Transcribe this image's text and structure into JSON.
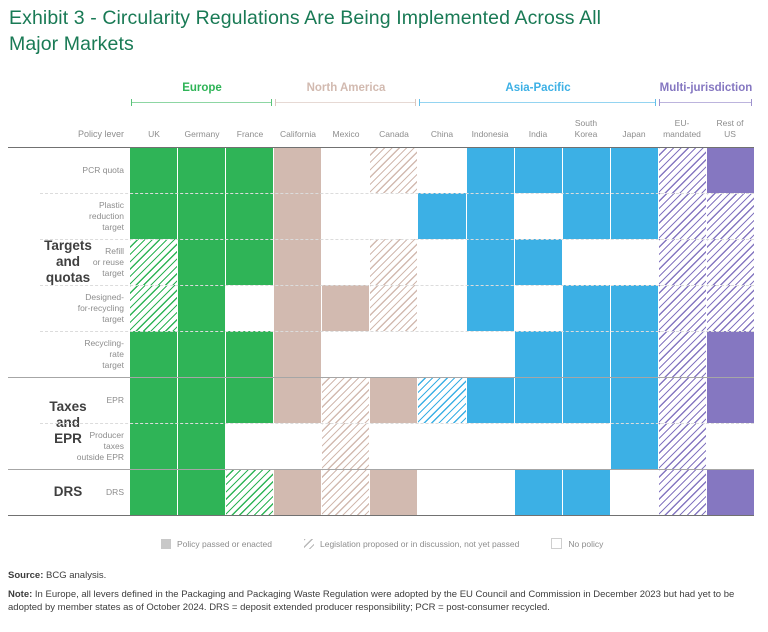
{
  "title": "Exhibit 3 - Circularity Regulations Are Being Implemented Across All\nMajor Markets",
  "header": {
    "policy_lever_label": "Policy lever"
  },
  "colors": {
    "title_green": "#197a55",
    "label_gray": "#8d8d8d",
    "group_dark": "#3f3f3f",
    "legend_gray": "#c8c8c8",
    "europe_green": "#2fb457",
    "north_america_tan": "#d2bab0",
    "asia_pacific_blue": "#3cb0e5",
    "multi_jurisdiction_purple": "#8577c1"
  },
  "regions": [
    {
      "name": "Europe",
      "color": "#2fb457",
      "cols": 3
    },
    {
      "name": "North America",
      "color": "#d2bab0",
      "cols": 3
    },
    {
      "name": "Asia-Pacific",
      "color": "#3cb0e5",
      "cols": 5
    },
    {
      "name": "Multi-jurisdiction",
      "color": "#8577c1",
      "cols": 2
    }
  ],
  "column_display": [
    "UK",
    "Germany",
    "France",
    "California",
    "Mexico",
    "Canada",
    "China",
    "Indonesia",
    "India",
    "South\nKorea",
    "Japan",
    "EU-\nmandated",
    "Rest of\nUS"
  ],
  "row_display": [
    "PCR quota",
    "Plastic\nreduction\ntarget",
    "Refill\nor reuse\ntarget",
    "Designed-\nfor-recycling\ntarget",
    "Recycling-\nrate\ntarget",
    "EPR",
    "Producer\ntaxes\noutside EPR",
    "DRS"
  ],
  "row_groups": [
    {
      "label": "Targets\nand\nquotas",
      "plain_label": "Targets and quotas",
      "first_row": 0,
      "row_count": 5
    },
    {
      "label": "Taxes\nand\nEPR",
      "plain_label": "Taxes and EPR",
      "first_row": 5,
      "row_count": 2
    },
    {
      "label": "DRS",
      "plain_label": "DRS",
      "first_row": 7,
      "row_count": 1
    }
  ],
  "legend": {
    "items": [
      {
        "label": "Policy passed or enacted",
        "swatch": "passed"
      },
      {
        "label": "Legislation proposed or in discussion, not yet passed",
        "swatch": "proposed"
      },
      {
        "label": "No policy",
        "swatch": "none"
      }
    ]
  },
  "footer": {
    "source_label": "Source:",
    "source_text": "BCG analysis.",
    "note_label": "Note:",
    "note_text": "In Europe, all levers defined in the Packaging and Packaging Waste Regulation were adopted by the EU Council and Commission in December 2023 but had yet to be adopted by member states as of October 2024. DRS = deposit extended producer responsibility; PCR = post-consumer recycled."
  },
  "chart_data": {
    "type": "heatmap",
    "title": "Exhibit 3 - Circularity Regulations Are Being Implemented Across All Major Markets",
    "columns": [
      "UK",
      "Germany",
      "France",
      "California",
      "Mexico",
      "Canada",
      "China",
      "Indonesia",
      "India",
      "South Korea",
      "Japan",
      "EU-mandated",
      "Rest of US"
    ],
    "column_regions": [
      0,
      0,
      0,
      1,
      1,
      1,
      2,
      2,
      2,
      2,
      2,
      3,
      3
    ],
    "region_names": [
      "Europe",
      "North America",
      "Asia-Pacific",
      "Multi-jurisdiction"
    ],
    "rows": [
      "PCR quota",
      "Plastic reduction target",
      "Refill or reuse target",
      "Designed-for-recycling target",
      "Recycling-rate target",
      "EPR",
      "Producer taxes outside EPR",
      "DRS"
    ],
    "values": [
      [
        "passed",
        "passed",
        "passed",
        "passed",
        "none",
        "proposed",
        "none",
        "passed",
        "passed",
        "passed",
        "passed",
        "proposed",
        "passed"
      ],
      [
        "passed",
        "passed",
        "passed",
        "passed",
        "none",
        "none",
        "passed",
        "passed",
        "none",
        "passed",
        "passed",
        "proposed",
        "proposed"
      ],
      [
        "proposed",
        "passed",
        "passed",
        "passed",
        "none",
        "proposed",
        "none",
        "passed",
        "passed",
        "none",
        "none",
        "proposed",
        "proposed"
      ],
      [
        "proposed",
        "passed",
        "none",
        "passed",
        "passed",
        "proposed",
        "none",
        "passed",
        "none",
        "passed",
        "passed",
        "proposed",
        "proposed"
      ],
      [
        "passed",
        "passed",
        "passed",
        "passed",
        "none",
        "none",
        "none",
        "none",
        "passed",
        "passed",
        "passed",
        "proposed",
        "passed"
      ],
      [
        "passed",
        "passed",
        "passed",
        "passed",
        "proposed",
        "passed",
        "proposed",
        "passed",
        "passed",
        "passed",
        "passed",
        "proposed",
        "passed"
      ],
      [
        "passed",
        "passed",
        "none",
        "none",
        "proposed",
        "none",
        "none",
        "none",
        "none",
        "none",
        "passed",
        "proposed",
        "none"
      ],
      [
        "passed",
        "passed",
        "proposed",
        "passed",
        "proposed",
        "passed",
        "none",
        "none",
        "passed",
        "passed",
        "none",
        "proposed",
        "passed"
      ]
    ],
    "value_legend": {
      "passed": "Policy passed or enacted",
      "proposed": "Legislation proposed or in discussion, not yet passed",
      "none": "No policy"
    }
  }
}
